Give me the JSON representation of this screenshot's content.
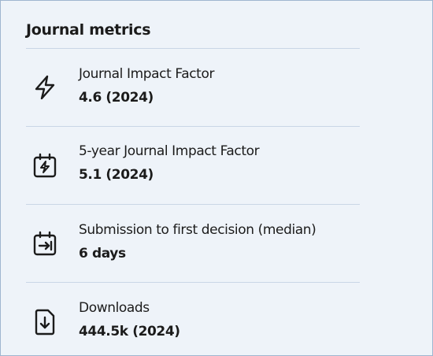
{
  "header": {
    "title": "Journal metrics"
  },
  "metrics": [
    {
      "label": "Journal Impact Factor",
      "value": "4.6 (2024)"
    },
    {
      "label": "5-year Journal Impact Factor",
      "value": "5.1 (2024)"
    },
    {
      "label": "Submission to first decision (median)",
      "value": "6 days"
    },
    {
      "label": "Downloads",
      "value": "444.5k (2024)"
    }
  ]
}
